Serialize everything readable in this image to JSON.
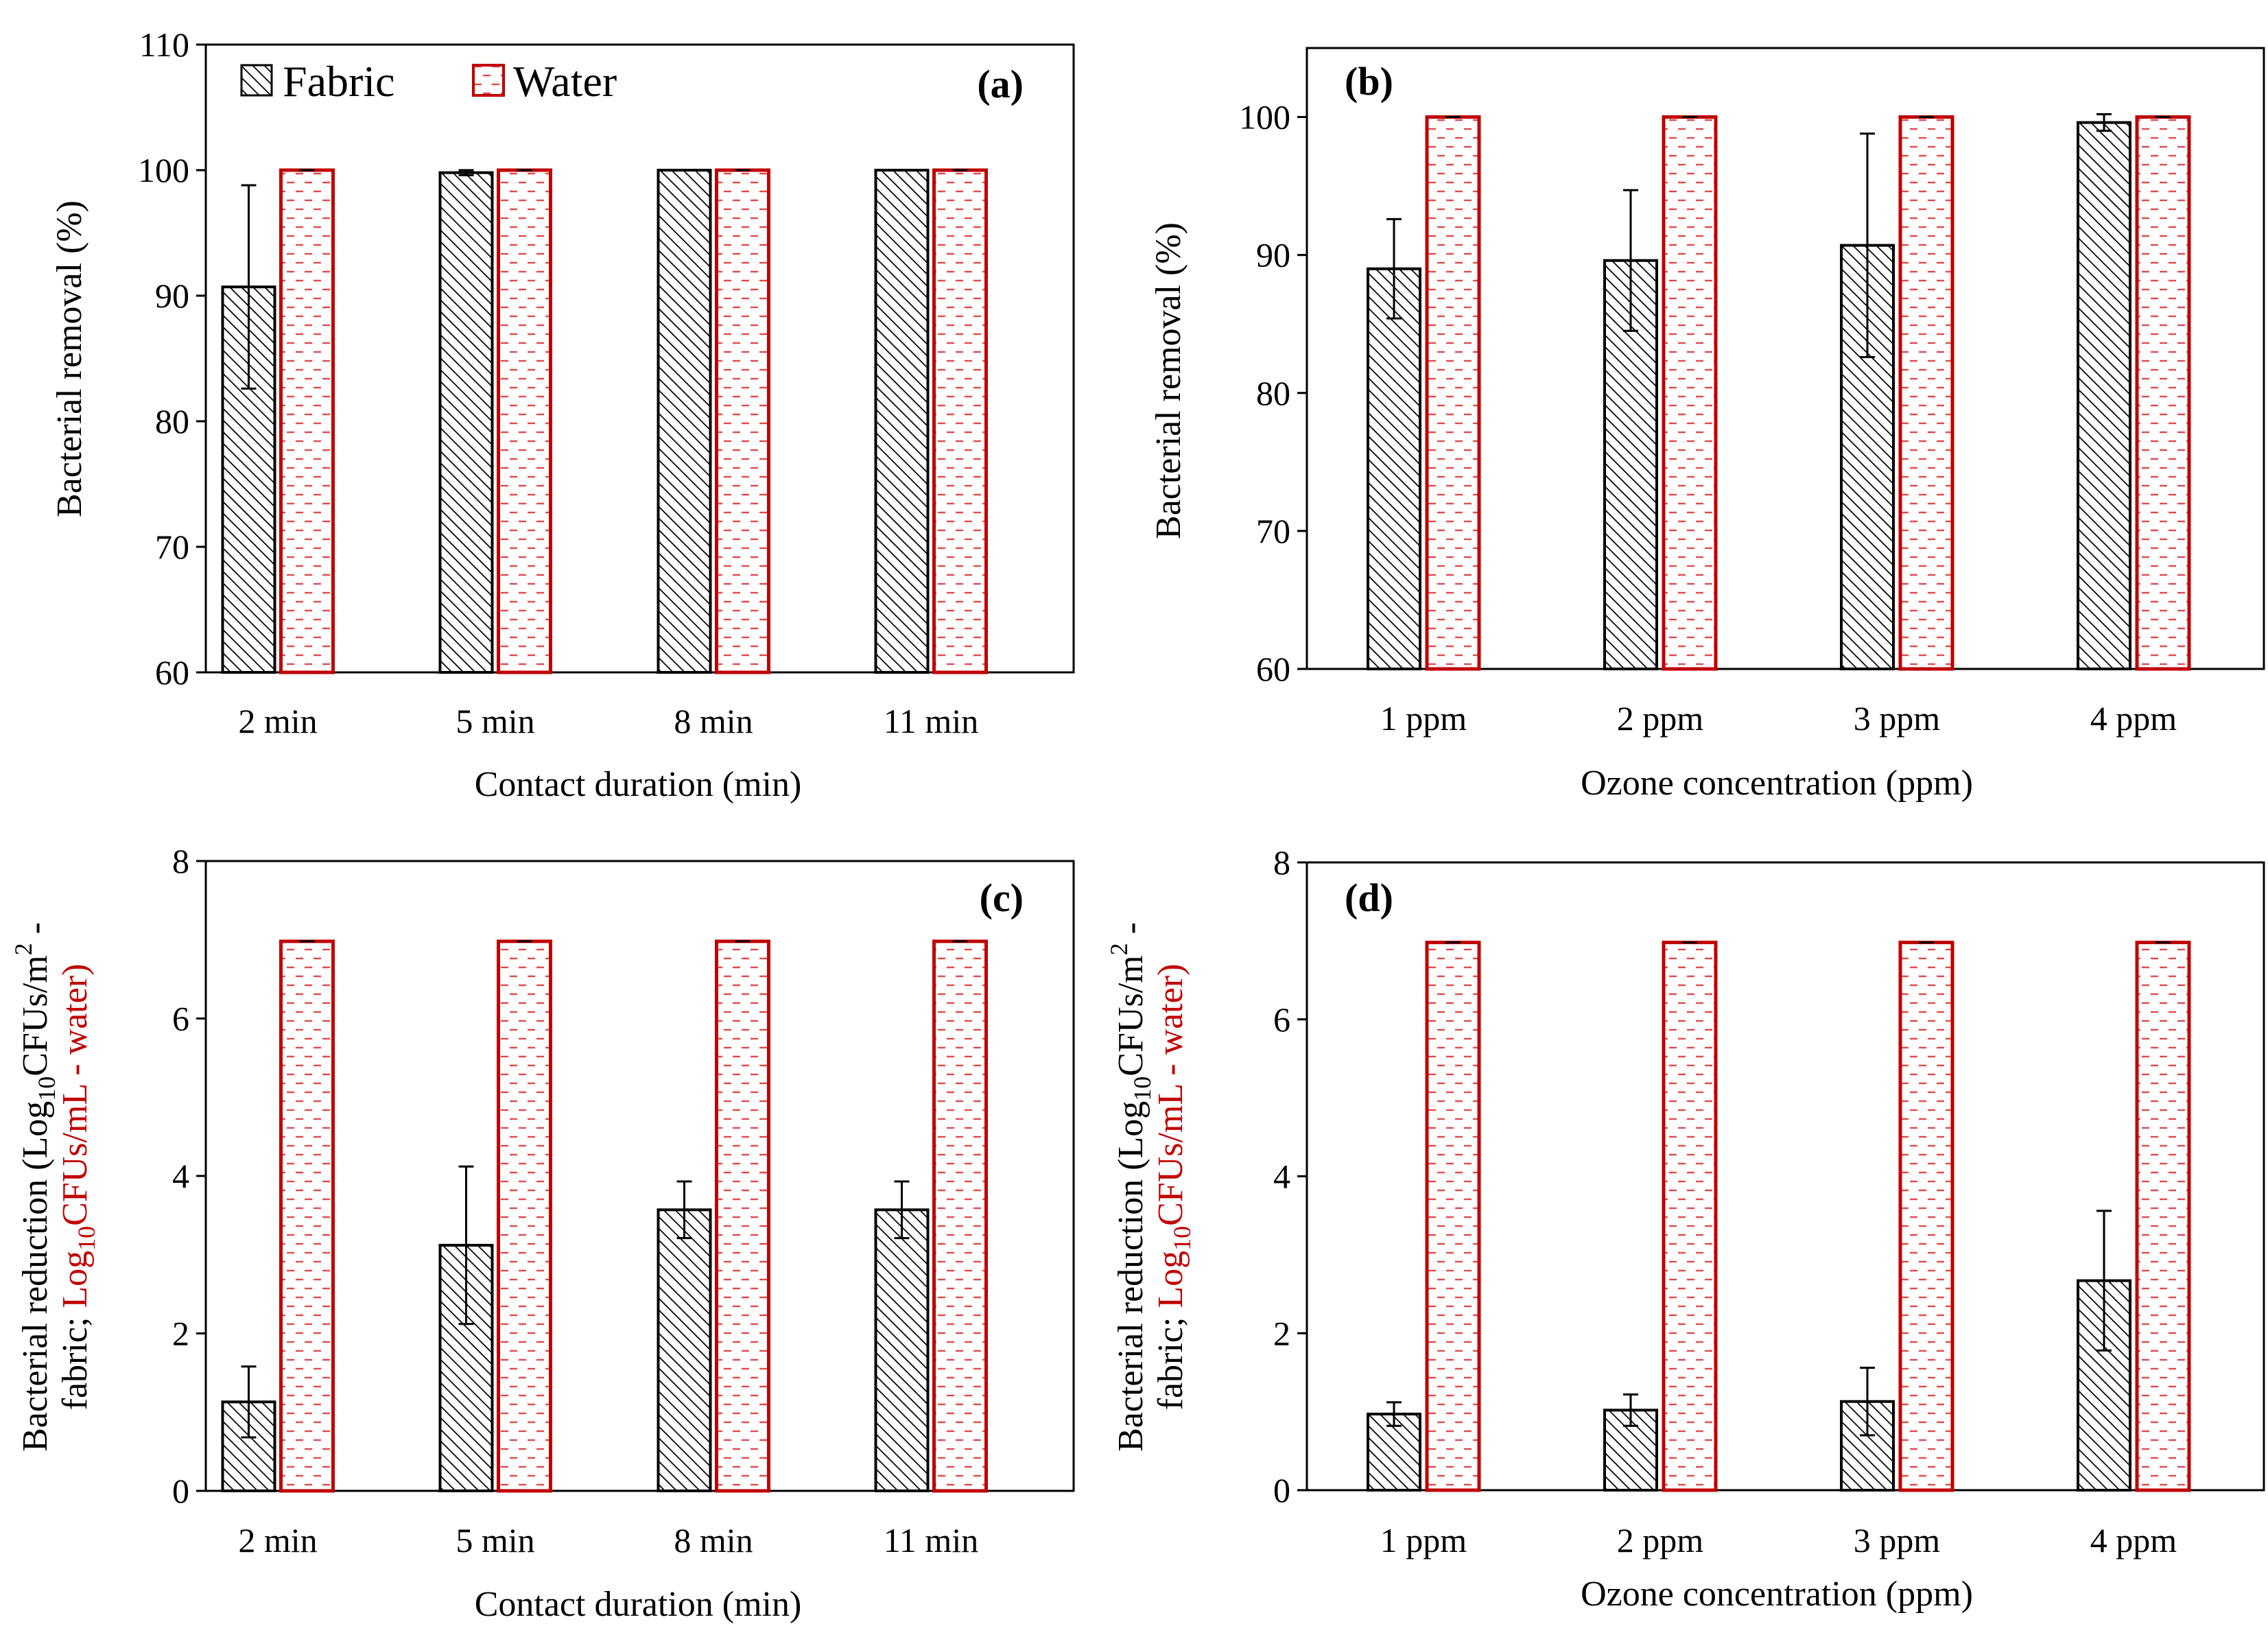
{
  "legend": {
    "fabric": "Fabric",
    "water": "Water"
  },
  "colors": {
    "fabric_stroke": "#000000",
    "water_stroke": "#c00000",
    "water_dash": "#e04a4a"
  },
  "chart_data": [
    {
      "id": "a",
      "type": "bar",
      "panel_label": "(a)",
      "xlabel": "Contact duration (min)",
      "ylabel": "Bacterial removal (%)",
      "ylim": [
        60,
        110
      ],
      "yticks": [
        60,
        70,
        80,
        90,
        100,
        110
      ],
      "categories": [
        "2 min",
        "5 min",
        "8 min",
        "11 min"
      ],
      "series": [
        {
          "name": "Fabric",
          "values": [
            90.7,
            99.8,
            100,
            100
          ],
          "errors": [
            8.1,
            0.2,
            0,
            0
          ]
        },
        {
          "name": "Water",
          "values": [
            100,
            100,
            100,
            100
          ],
          "errors": [
            0,
            0,
            0,
            0
          ]
        }
      ],
      "legend_position": "top-left"
    },
    {
      "id": "b",
      "type": "bar",
      "panel_label": "(b)",
      "xlabel": "Ozone concentration (ppm)",
      "ylabel": "Bacterial removal (%)",
      "ylim": [
        60,
        105
      ],
      "yticks": [
        60,
        70,
        80,
        90,
        100
      ],
      "categories": [
        "1 ppm",
        "2 ppm",
        "3 ppm",
        "4 ppm"
      ],
      "series": [
        {
          "name": "Fabric",
          "values": [
            89.0,
            89.6,
            90.7,
            99.6
          ],
          "errors": [
            3.6,
            5.1,
            8.1,
            0.6
          ]
        },
        {
          "name": "Water",
          "values": [
            100,
            100,
            100,
            100
          ],
          "errors": [
            0,
            0,
            0,
            0
          ]
        }
      ]
    },
    {
      "id": "c",
      "type": "bar",
      "panel_label": "(c)",
      "xlabel": "Contact duration (min)",
      "ylabel_line1": "Bacterial  reduction (Log",
      "ylabel_line1_sub": "10",
      "ylabel_line1_end": "CFUs/m",
      "ylabel_line1_sup": "2",
      "ylabel_line1_tail": " -",
      "ylabel_line2_black": "fabric; ",
      "ylabel_line2_red": "Log",
      "ylabel_line2_red_sub": "10",
      "ylabel_line2_red_end": "CFUs/mL - water)",
      "ylim": [
        0,
        8
      ],
      "yticks": [
        0,
        2,
        4,
        6,
        8
      ],
      "categories": [
        "2 min",
        "5 min",
        "8 min",
        "11 min"
      ],
      "series": [
        {
          "name": "Fabric",
          "values": [
            1.13,
            3.12,
            3.57,
            3.57
          ],
          "errors": [
            0.45,
            1.0,
            0.36,
            0.36
          ]
        },
        {
          "name": "Water",
          "values": [
            6.98,
            6.98,
            6.98,
            6.98
          ],
          "errors": [
            0,
            0,
            0,
            0
          ]
        }
      ]
    },
    {
      "id": "d",
      "type": "bar",
      "panel_label": "(d)",
      "xlabel": "Ozone concentration (ppm)",
      "ylabel_line1": "Bacterial  reduction (Log",
      "ylabel_line1_sub": "10",
      "ylabel_line1_end": "CFUs/m",
      "ylabel_line1_sup": "2",
      "ylabel_line1_tail": " -",
      "ylabel_line2_black": "fabric; ",
      "ylabel_line2_red": "Log",
      "ylabel_line2_red_sub": "10",
      "ylabel_line2_red_end": "CFUs/mL - water)",
      "ylim": [
        0,
        8
      ],
      "yticks": [
        0,
        2,
        4,
        6,
        8
      ],
      "categories": [
        "1 ppm",
        "2 ppm",
        "3 ppm",
        "4 ppm"
      ],
      "series": [
        {
          "name": "Fabric",
          "values": [
            0.97,
            1.02,
            1.13,
            2.67
          ],
          "errors": [
            0.15,
            0.2,
            0.43,
            0.89
          ]
        },
        {
          "name": "Water",
          "values": [
            6.98,
            6.98,
            6.98,
            6.98
          ],
          "errors": [
            0,
            0,
            0,
            0
          ]
        }
      ]
    }
  ]
}
